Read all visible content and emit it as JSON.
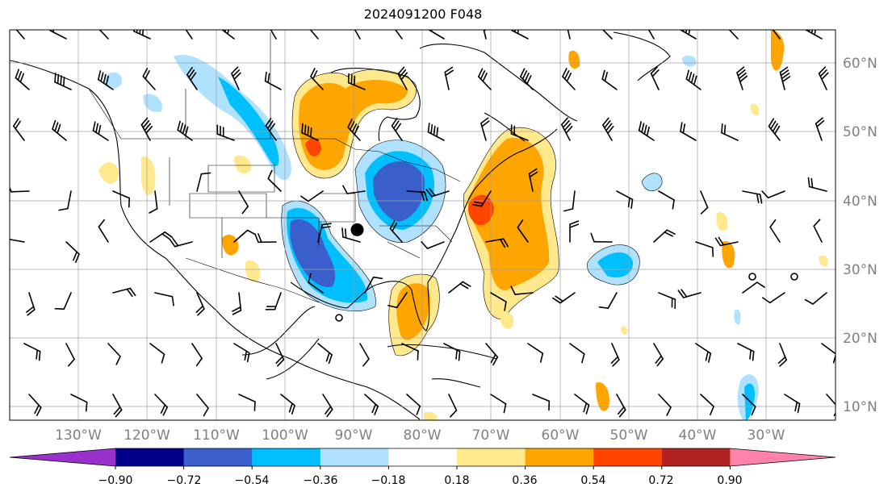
{
  "title": "2024091200 F048",
  "map": {
    "projection": "PlateCarree",
    "lon_range": [
      -140,
      -20
    ],
    "lat_range": [
      8,
      65
    ],
    "gridlines": true,
    "lat_labels": [
      "60°N",
      "50°N",
      "40°N",
      "30°N",
      "20°N",
      "10°N"
    ],
    "lat_values": [
      60,
      50,
      40,
      30,
      20,
      10
    ],
    "lon_labels": [
      "130°W",
      "120°W",
      "110°W",
      "100°W",
      "90°W",
      "80°W",
      "70°W",
      "60°W",
      "50°W",
      "40°W",
      "30°W"
    ],
    "lon_values": [
      -130,
      -120,
      -110,
      -100,
      -90,
      -80,
      -70,
      -60,
      -50,
      -40,
      -30
    ],
    "marker": {
      "lon": -89.5,
      "lat": 35.8,
      "shape": "filled-circle"
    }
  },
  "colorbar": {
    "orientation": "horizontal",
    "extend": "both",
    "tick_labels": [
      "−0.90",
      "−0.72",
      "−0.54",
      "−0.36",
      "−0.18",
      "0.18",
      "0.36",
      "0.54",
      "0.72",
      "0.90"
    ],
    "colors": [
      "#9932cc",
      "#00008b",
      "#3a5fcd",
      "#00bfff",
      "#b0e2ff",
      "#ffffff",
      "#ffe98c",
      "#ffa500",
      "#ff4500",
      "#b22222",
      "#ff82ab"
    ]
  }
}
